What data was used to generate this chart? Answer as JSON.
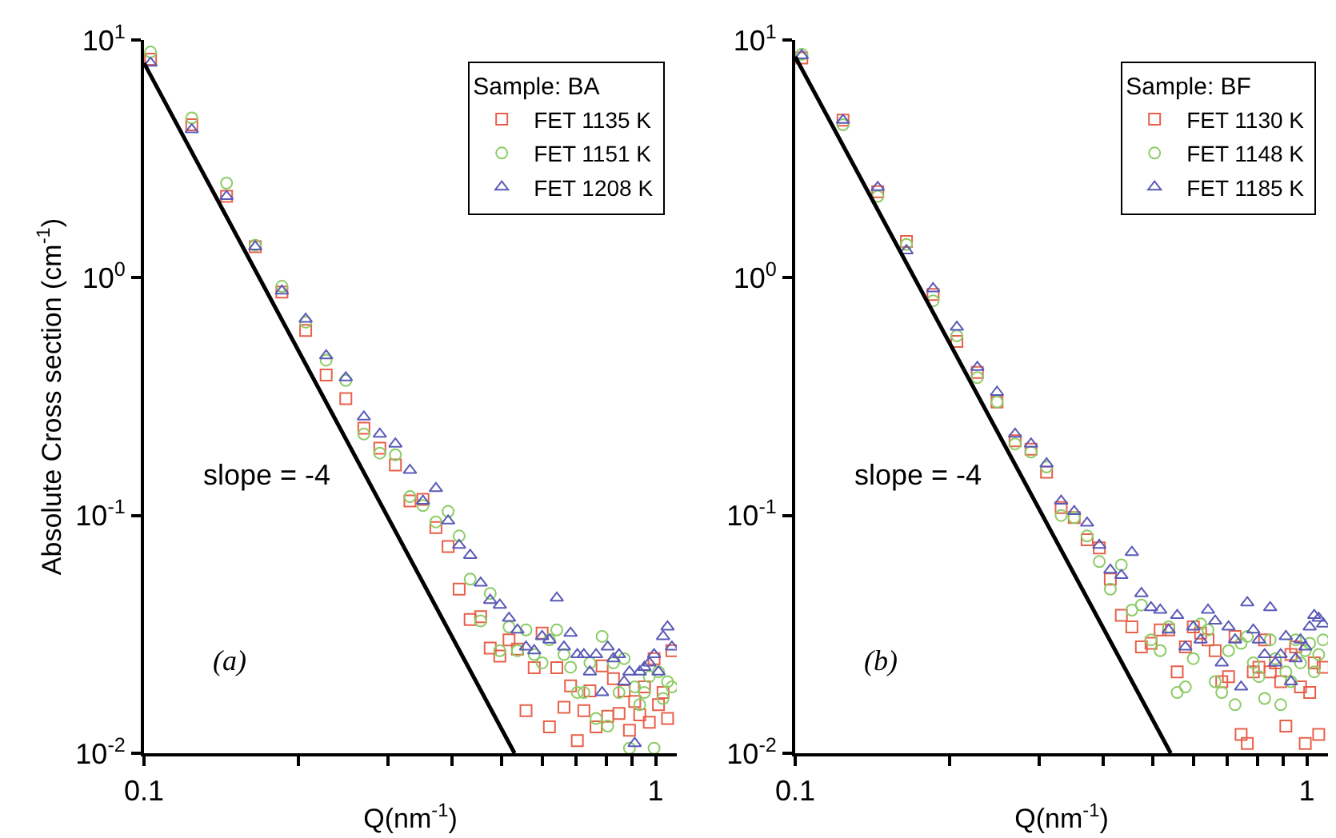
{
  "chart_data": [
    {
      "type": "scatter",
      "ylabel": "Absolute Cross section (cm$^{-1}$)",
      "xlabel": "Q(nm$^{-1}$)",
      "legend_title": "Sample: BA",
      "legend": "top right",
      "log": "xy",
      "xlim": [
        0.1,
        1.1
      ],
      "ylim": [
        0.01,
        10
      ],
      "xticks": [
        {
          "value": 0.1,
          "label": "0.1"
        },
        {
          "value": 0.2,
          "label": null
        },
        {
          "value": 0.3,
          "label": null
        },
        {
          "value": 0.4,
          "label": null
        },
        {
          "value": 0.5,
          "label": null
        },
        {
          "value": 0.6,
          "label": null
        },
        {
          "value": 0.7,
          "label": null
        },
        {
          "value": 0.8,
          "label": null
        },
        {
          "value": 0.9,
          "label": null
        },
        {
          "value": 1,
          "label": "1"
        }
      ],
      "yticks": [
        {
          "value": 0.01,
          "label": "10$^{-2}$"
        },
        {
          "value": 0.1,
          "label": "10$^{-1}$"
        },
        {
          "value": 1,
          "label": "10$^{0}$"
        },
        {
          "value": 10,
          "label": "10$^{1}$"
        }
      ],
      "x": [
        0.103,
        0.124,
        0.145,
        0.165,
        0.186,
        0.207,
        0.227,
        0.248,
        0.269,
        0.289,
        0.31,
        0.331,
        0.351,
        0.372,
        0.393,
        0.413,
        0.434,
        0.455,
        0.475,
        0.496,
        0.517,
        0.537,
        0.558,
        0.579,
        0.6,
        0.62,
        0.641,
        0.662,
        0.682,
        0.703,
        0.724,
        0.744,
        0.765,
        0.786,
        0.806,
        0.827,
        0.848,
        0.868,
        0.889,
        0.91,
        0.931,
        0.951,
        0.972,
        0.993,
        1.013,
        1.034,
        1.055,
        1.076
      ],
      "series": [
        {
          "name": "FET 1135 K",
          "color": "#e8604a",
          "marker": "square",
          "values": [
            8.3,
            4.4,
            2.2,
            1.35,
            0.87,
            0.6,
            0.39,
            0.31,
            0.233,
            0.192,
            0.163,
            0.115,
            0.117,
            0.089,
            0.074,
            0.049,
            0.0365,
            0.0375,
            0.0277,
            0.0256,
            0.03,
            0.0274,
            0.0151,
            0.0229,
            0.032,
            0.0129,
            0.0229,
            0.0156,
            0.0192,
            0.0113,
            0.0151,
            0.0183,
            0.0129,
            0.0233,
            0.0143,
            0.0206,
            0.0147,
            0.0183,
            0.0125,
            0.0165,
            0.0145,
            0.019,
            0.0135,
            0.025,
            0.016,
            0.018,
            0.014,
            0.027
          ]
        },
        {
          "name": "FET 1151 K",
          "color": "#8ccc66",
          "marker": "circle",
          "values": [
            8.9,
            4.7,
            2.5,
            1.37,
            0.92,
            0.65,
            0.45,
            0.37,
            0.22,
            0.183,
            0.18,
            0.12,
            0.11,
            0.094,
            0.104,
            0.082,
            0.054,
            0.036,
            0.047,
            0.027,
            0.034,
            0.027,
            0.033,
            0.026,
            0.024,
            0.03,
            0.033,
            0.026,
            0.023,
            0.018,
            0.018,
            0.024,
            0.014,
            0.031,
            0.013,
            0.024,
            0.018,
            0.025,
            0.0105,
            0.019,
            0.016,
            0.018,
            0.021,
            0.0105,
            0.022,
            0.017,
            0.02,
            0.019
          ]
        },
        {
          "name": "FET 1208 K",
          "color": "#5a5ab8",
          "marker": "triangle",
          "values": [
            8.0,
            4.2,
            2.2,
            1.35,
            0.88,
            0.67,
            0.47,
            0.38,
            0.26,
            0.22,
            0.2,
            0.155,
            0.115,
            0.13,
            0.095,
            0.075,
            0.068,
            0.052,
            0.044,
            0.042,
            0.037,
            0.033,
            0.028,
            0.027,
            0.031,
            0.03,
            0.045,
            0.028,
            0.032,
            0.026,
            0.026,
            0.022,
            0.026,
            0.018,
            0.028,
            0.025,
            0.026,
            0.02,
            0.022,
            0.011,
            0.022,
            0.023,
            0.024,
            0.026,
            0.022,
            0.031,
            0.034,
            0.028
          ]
        },
        {
          "type": "line",
          "color": "#000000",
          "marker": "none",
          "line_style": "solid",
          "x": [
            0.1,
            0.53
          ],
          "values": [
            8.0,
            0.01
          ]
        }
      ],
      "annotations": [
        "slope = -4",
        "(a)"
      ]
    },
    {
      "type": "scatter",
      "xlabel": "Q(nm$^{-1}$)",
      "legend_title": "Sample: BF",
      "legend": "top right",
      "log": "xy",
      "xlim": [
        0.1,
        1.1
      ],
      "ylim": [
        0.01,
        10
      ],
      "xticks": [
        {
          "value": 0.1,
          "label": "0.1"
        },
        {
          "value": 0.2,
          "label": null
        },
        {
          "value": 0.3,
          "label": null
        },
        {
          "value": 0.4,
          "label": null
        },
        {
          "value": 0.5,
          "label": null
        },
        {
          "value": 0.6,
          "label": null
        },
        {
          "value": 0.7,
          "label": null
        },
        {
          "value": 0.8,
          "label": null
        },
        {
          "value": 0.9,
          "label": null
        },
        {
          "value": 1,
          "label": "1"
        }
      ],
      "yticks": [
        {
          "value": 0.01,
          "label": "10$^{-2}$"
        },
        {
          "value": 0.1,
          "label": "10$^{-1}$"
        },
        {
          "value": 1,
          "label": "10$^{0}$"
        },
        {
          "value": 10,
          "label": "10$^{1}$"
        }
      ],
      "x": [
        0.103,
        0.124,
        0.145,
        0.165,
        0.186,
        0.207,
        0.227,
        0.248,
        0.269,
        0.289,
        0.31,
        0.331,
        0.351,
        0.372,
        0.393,
        0.413,
        0.434,
        0.455,
        0.475,
        0.496,
        0.517,
        0.537,
        0.558,
        0.579,
        0.6,
        0.62,
        0.641,
        0.662,
        0.682,
        0.703,
        0.724,
        0.744,
        0.765,
        0.786,
        0.806,
        0.827,
        0.848,
        0.868,
        0.889,
        0.91,
        0.931,
        0.951,
        0.972,
        0.993,
        1.013,
        1.034,
        1.055,
        1.076
      ],
      "series": [
        {
          "name": "FET 1130 K",
          "color": "#e8604a",
          "marker": "square",
          "values": [
            8.4,
            4.6,
            2.3,
            1.42,
            0.85,
            0.54,
            0.4,
            0.3,
            0.206,
            0.19,
            0.152,
            0.108,
            0.098,
            0.079,
            0.073,
            0.054,
            0.038,
            0.034,
            0.028,
            0.029,
            0.033,
            0.033,
            0.022,
            0.028,
            0.034,
            0.032,
            0.03,
            0.027,
            0.02,
            0.021,
            0.031,
            0.012,
            0.011,
            0.022,
            0.023,
            0.03,
            0.022,
            0.024,
            0.02,
            0.013,
            0.026,
            0.028,
            0.019,
            0.011,
            0.018,
            0.024,
            0.012,
            0.023
          ]
        },
        {
          "name": "FET 1148 K",
          "color": "#8ccc66",
          "marker": "circle",
          "values": [
            8.7,
            4.4,
            2.2,
            1.38,
            0.8,
            0.57,
            0.38,
            0.3,
            0.2,
            0.185,
            0.16,
            0.1,
            0.098,
            0.082,
            0.064,
            0.049,
            0.062,
            0.04,
            0.042,
            0.03,
            0.027,
            0.034,
            0.018,
            0.019,
            0.025,
            0.035,
            0.033,
            0.02,
            0.018,
            0.027,
            0.016,
            0.029,
            0.031,
            0.024,
            0.021,
            0.017,
            0.03,
            0.025,
            0.016,
            0.022,
            0.02,
            0.03,
            0.024,
            0.027,
            0.029,
            0.022,
            0.026,
            0.03
          ]
        },
        {
          "name": "FET 1185 K",
          "color": "#5a5ab8",
          "marker": "triangle",
          "values": [
            8.6,
            4.6,
            2.4,
            1.3,
            0.9,
            0.62,
            0.42,
            0.33,
            0.22,
            0.2,
            0.165,
            0.115,
            0.104,
            0.093,
            0.075,
            0.059,
            0.056,
            0.07,
            0.047,
            0.041,
            0.04,
            0.033,
            0.038,
            0.028,
            0.034,
            0.03,
            0.04,
            0.036,
            0.024,
            0.034,
            0.03,
            0.019,
            0.043,
            0.033,
            0.03,
            0.026,
            0.041,
            0.024,
            0.026,
            0.031,
            0.02,
            0.025,
            0.03,
            0.028,
            0.034,
            0.038,
            0.037,
            0.035
          ]
        },
        {
          "type": "line",
          "color": "#000000",
          "marker": "none",
          "line_style": "solid",
          "x": [
            0.1,
            0.542
          ],
          "values": [
            8.5,
            0.01
          ]
        }
      ],
      "annotations": [
        "slope = -4",
        "(b)"
      ]
    }
  ]
}
